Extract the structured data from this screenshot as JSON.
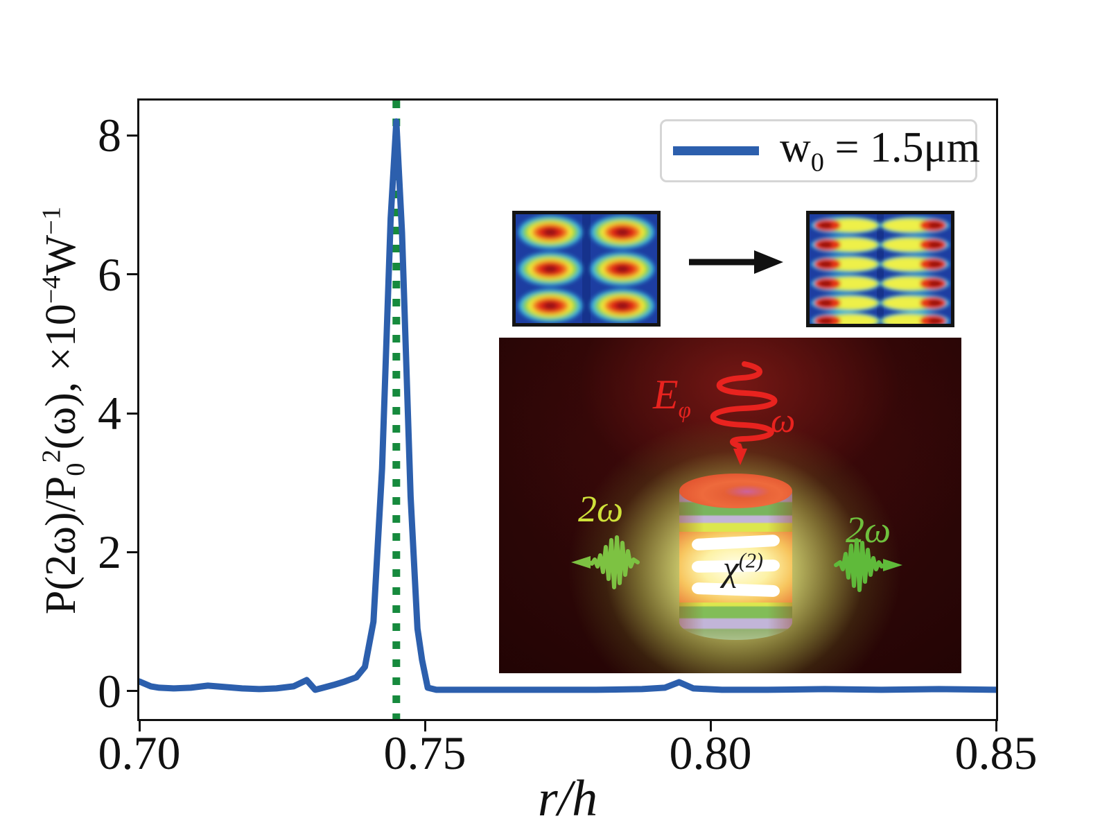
{
  "chart_data": {
    "type": "line",
    "title": "",
    "xlabel": "r/h",
    "ylabel": "P(2ω)/P₀²(ω), ×10⁻⁴W⁻¹",
    "xlim": [
      0.7,
      0.85
    ],
    "ylim": [
      -0.4,
      8.5
    ],
    "grid": false,
    "legend_position": "upper right",
    "xticks": {
      "values": [
        0.7,
        0.75,
        0.8,
        0.85
      ],
      "labels": [
        "0.70",
        "0.75",
        "0.80",
        "0.85"
      ]
    },
    "yticks": {
      "values": [
        0,
        2,
        4,
        6,
        8
      ],
      "labels": [
        "0",
        "2",
        "4",
        "6",
        "8"
      ]
    },
    "series": [
      {
        "name": "w0 = 1.5um",
        "color": "#2c5fad",
        "x": [
          0.7,
          0.702,
          0.7035,
          0.706,
          0.709,
          0.712,
          0.715,
          0.718,
          0.721,
          0.724,
          0.727,
          0.7293,
          0.7308,
          0.7322,
          0.734,
          0.736,
          0.738,
          0.7395,
          0.741,
          0.7425,
          0.744,
          0.745,
          0.746,
          0.7475,
          0.7487,
          0.7495,
          0.7505,
          0.752,
          0.756,
          0.762,
          0.77,
          0.78,
          0.788,
          0.792,
          0.7945,
          0.797,
          0.802,
          0.81,
          0.82,
          0.83,
          0.84,
          0.85
        ],
        "y": [
          0.14,
          0.07,
          0.05,
          0.04,
          0.05,
          0.08,
          0.06,
          0.04,
          0.03,
          0.04,
          0.07,
          0.16,
          0.02,
          0.05,
          0.09,
          0.14,
          0.2,
          0.35,
          1.0,
          3.2,
          6.8,
          8.2,
          6.6,
          2.8,
          0.9,
          0.45,
          0.05,
          0.02,
          0.02,
          0.02,
          0.02,
          0.02,
          0.03,
          0.05,
          0.13,
          0.04,
          0.02,
          0.02,
          0.03,
          0.02,
          0.03,
          0.02
        ]
      }
    ],
    "vline": {
      "x": 0.745,
      "color": "#168a3d",
      "style": "dotted"
    },
    "peak": {
      "x": 0.745,
      "y": 8.2
    }
  },
  "axes": {
    "xlabel": "r/h",
    "ylabel_parts": {
      "p1": "P(2ω)/P",
      "sub": "0",
      "sup": "2",
      "p2": "(ω), ×10",
      "e1": "−4",
      "p3": "W",
      "e2": "−1"
    }
  },
  "legend": {
    "parts": {
      "base": "w",
      "sub": "0",
      "rest": " = 1.5μm"
    },
    "line_color": "#2c5fad"
  },
  "illustration": {
    "pump": {
      "symbol": "E",
      "sub": "φ",
      "frequency": "ω",
      "color": "#e8231f"
    },
    "second_harmonic": {
      "left_label": "2ω",
      "right_label": "2ω",
      "left_color": "#cfe23a",
      "right_color": "#6fc13d"
    },
    "nonlinearity": {
      "base": "χ",
      "sup": "(2)"
    }
  }
}
